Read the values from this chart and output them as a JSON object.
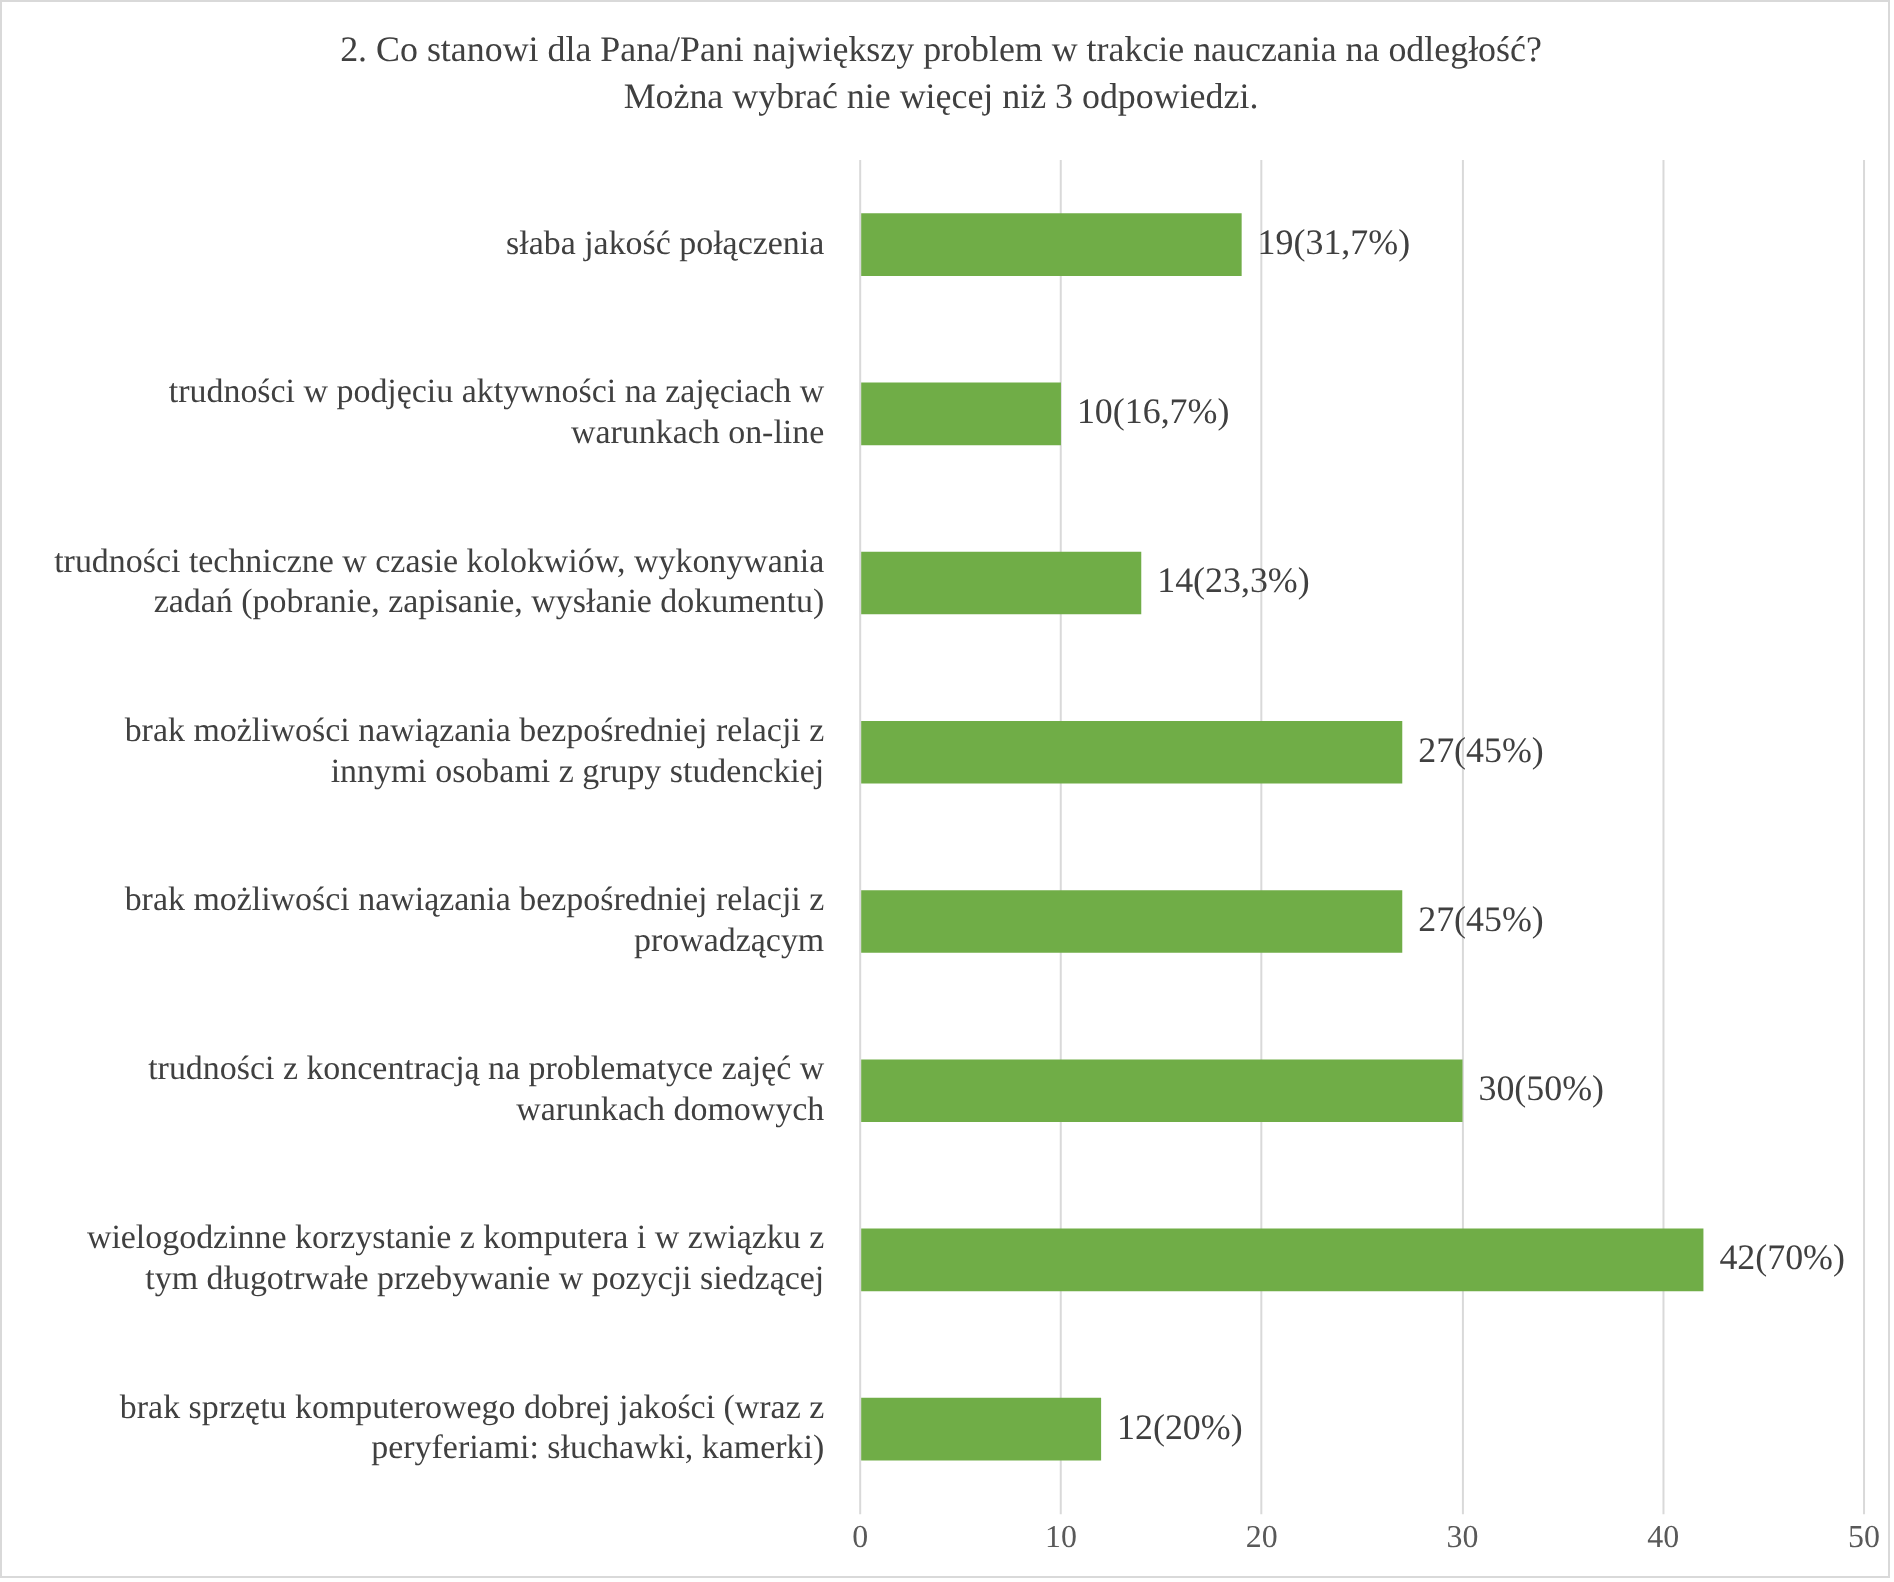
{
  "chart_data": {
    "type": "bar",
    "orientation": "horizontal",
    "title": "2. Co stanowi dla Pana/Pani największy problem w trakcie nauczania na odległość?",
    "subtitle": "Można wybrać nie więcej niż 3 odpowiedzi.",
    "categories": [
      "słaba jakość połączenia",
      "trudności w podjęciu aktywności na zajęciach w warunkach on-line",
      "trudności techniczne w czasie kolokwiów, wykonywania zadań (pobranie, zapisanie, wysłanie dokumentu)",
      "brak możliwości nawiązania bezpośredniej relacji z innymi osobami z grupy studenckiej",
      "brak możliwości nawiązania bezpośredniej relacji z prowadzącym",
      "trudności z koncentracją na problematyce zajęć w warunkach domowych",
      "wielogodzinne korzystanie z komputera i w związku z tym długotrwałe przebywanie w pozycji siedzącej",
      "brak sprzętu komputerowego dobrej jakości (wraz z peryferiami: słuchawki, kamerki)"
    ],
    "values": [
      19,
      10,
      14,
      27,
      27,
      30,
      42,
      12
    ],
    "value_labels": [
      "19(31,7%)",
      "10(16,7%)",
      "14(23,3%)",
      "27(45%)",
      "27(45%)",
      "30(50%)",
      "42(70%)",
      "12(20%)"
    ],
    "color": "#70ad47",
    "xlim": [
      0,
      50
    ],
    "xticks": [
      0,
      10,
      20,
      30,
      40,
      50
    ],
    "grid": "x",
    "legend": false
  }
}
